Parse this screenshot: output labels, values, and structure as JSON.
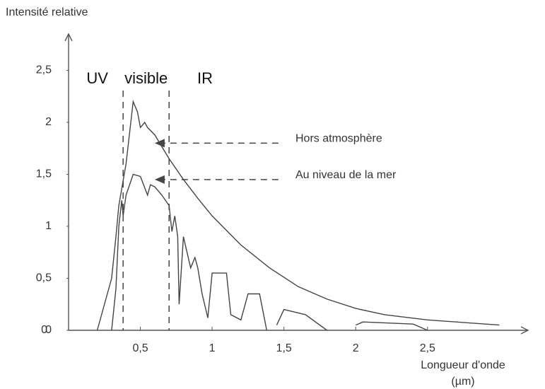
{
  "chart_data": {
    "type": "line",
    "ylabel": "Intensité relative",
    "xlabel": [
      "Longueur d'onde",
      "(µm)"
    ],
    "xlim": [
      0,
      3.2
    ],
    "ylim": [
      0,
      2.85
    ],
    "xticks": [
      {
        "value": 0.5,
        "label": "0,5"
      },
      1,
      {
        "value": 1.5,
        "label": "1,5"
      },
      2,
      {
        "value": 2.5,
        "label": "2,5"
      }
    ],
    "yticks": [
      0,
      {
        "value": 0.5,
        "label": "0,5"
      },
      1,
      {
        "value": 1.5,
        "label": "1,5"
      },
      2,
      {
        "value": 2.5,
        "label": "2,5"
      }
    ],
    "bands": [
      {
        "label": "UV",
        "x": 0.2
      },
      {
        "label": "visible",
        "x": 0.54
      },
      {
        "label": "IR",
        "x": 0.95
      }
    ],
    "band_edges": [
      0.38,
      0.7
    ],
    "series": [
      {
        "name": "Hors atmosphère",
        "color": "#444444",
        "arrow_to": [
          0.6,
          1.8
        ],
        "x": [
          0.2,
          0.3,
          0.33,
          0.35,
          0.4,
          0.45,
          0.48,
          0.5,
          0.53,
          0.55,
          0.6,
          0.7,
          0.8,
          0.9,
          1.0,
          1.2,
          1.4,
          1.6,
          1.8,
          2.0,
          2.2,
          2.5,
          2.8,
          3.0
        ],
        "values": [
          0,
          0.5,
          0.9,
          1.2,
          1.6,
          2.2,
          2.1,
          1.95,
          2.0,
          1.95,
          1.88,
          1.65,
          1.45,
          1.27,
          1.1,
          0.82,
          0.6,
          0.42,
          0.3,
          0.21,
          0.15,
          0.1,
          0.07,
          0.05
        ]
      },
      {
        "name": "Au niveau de la mer",
        "color": "#444444",
        "arrow_to": [
          0.6,
          1.45
        ],
        "x": [
          0.3,
          0.33,
          0.35,
          0.37,
          0.38,
          0.4,
          0.45,
          0.5,
          0.55,
          0.57,
          0.6,
          0.65,
          0.7,
          0.72,
          0.74,
          0.76,
          0.77,
          0.8,
          0.85,
          0.88,
          0.9,
          0.93,
          0.97,
          1.0,
          1.1,
          1.13,
          1.2,
          1.25,
          1.33,
          1.38,
          null,
          1.45,
          1.5,
          1.65,
          1.8,
          null,
          2.0,
          2.05,
          2.4,
          2.5
        ],
        "values": [
          0,
          0.4,
          1.0,
          1.25,
          1.1,
          1.3,
          1.5,
          1.48,
          1.3,
          1.4,
          1.38,
          1.3,
          1.2,
          0.95,
          1.1,
          0.9,
          0.25,
          0.9,
          0.6,
          0.7,
          0.6,
          0.35,
          0.12,
          0.55,
          0.55,
          0.15,
          0.1,
          0.35,
          0.35,
          0.0,
          null,
          0.05,
          0.2,
          0.15,
          0.0,
          null,
          0.05,
          0.08,
          0.06,
          0.0
        ]
      }
    ]
  }
}
